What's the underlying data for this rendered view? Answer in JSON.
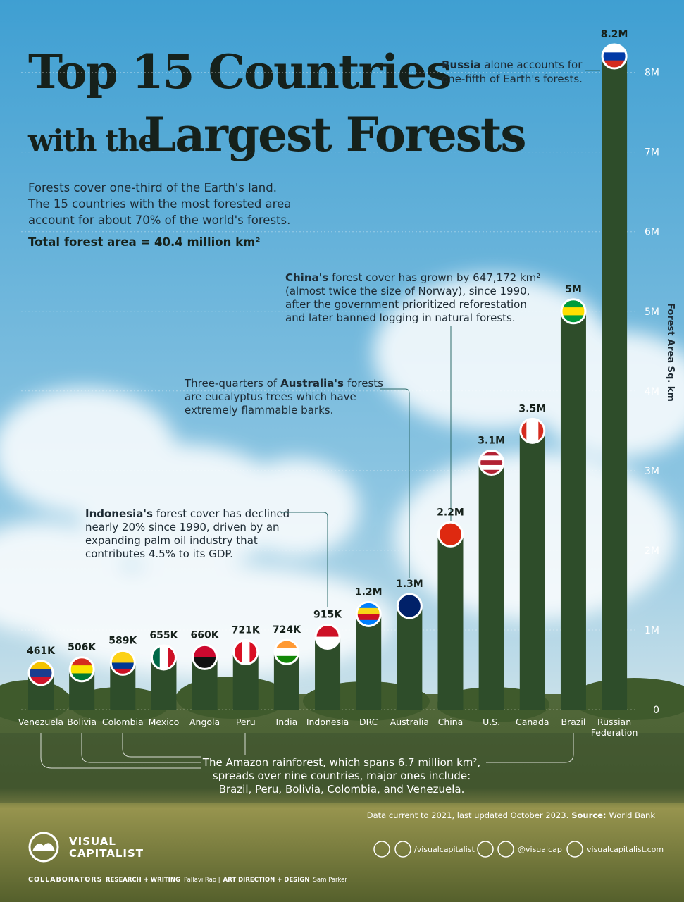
{
  "header": {
    "title_line1": "Top 15 Countries",
    "title_line2a": "with the",
    "title_line2b": "Largest Forests",
    "intro": [
      "Forests cover one-third of the Earth's land.",
      "The 15 countries with the most forested area",
      "account for about 70% of the world's forests."
    ],
    "total": "Total forest area = 40.4 million km²"
  },
  "chart_data": {
    "type": "bar",
    "y_axis_label": "Forest Area Sq. km",
    "categories": [
      "Venezuela",
      "Bolivia",
      "Colombia",
      "Mexico",
      "Angola",
      "Peru",
      "India",
      "Indonesia",
      "DRC",
      "Australia",
      "China",
      "U.S.",
      "Canada",
      "Brazil",
      "Russian Federation"
    ],
    "values": [
      461000,
      506000,
      589000,
      655000,
      660000,
      721000,
      724000,
      915000,
      1200000,
      1300000,
      2200000,
      3100000,
      3500000,
      5000000,
      8200000
    ],
    "value_labels": [
      "461K",
      "506K",
      "589K",
      "655K",
      "660K",
      "721K",
      "724K",
      "915K",
      "1.2M",
      "1.3M",
      "2.2M",
      "3.1M",
      "3.5M",
      "5M",
      "8.2M"
    ],
    "color": "#2e4d2a",
    "ylim": [
      0,
      8200000
    ],
    "yticks": [
      0,
      {
        "value": 1000000,
        "label": "1M"
      },
      {
        "value": 2000000,
        "label": "2M"
      },
      {
        "value": 3000000,
        "label": "3M"
      },
      {
        "value": 4000000,
        "label": "4M"
      },
      {
        "value": 5000000,
        "label": "5M"
      },
      {
        "value": 6000000,
        "label": "6M"
      },
      {
        "value": 7000000,
        "label": "7M"
      },
      {
        "value": 8000000,
        "label": "8M"
      }
    ],
    "grid": true
  },
  "annotations": [
    {
      "bold": "Russia",
      "after": "alone accounts for",
      "lines": [
        "one-fifth of Earth's forests."
      ]
    },
    {
      "bold": "China's",
      "after": "forest cover has grown by 647,172 km²",
      "lines": [
        "(almost twice the size of Norway), since 1990,",
        "after the government prioritized reforestation",
        "and later banned logging in natural forests."
      ]
    },
    {
      "before": "Three-quarters of",
      "bold": "Australia's",
      "after": "forests",
      "lines": [
        "are eucalyptus trees which have",
        "extremely flammable barks."
      ]
    },
    {
      "bold": "Indonesia's",
      "after": "forest cover has declined",
      "lines": [
        "nearly 20% since 1990, driven by an",
        "expanding palm oil industry that",
        "contributes 4.5% to its GDP."
      ]
    }
  ],
  "amazon": {
    "lines": [
      "The Amazon rainforest, which spans 6.7 million km²,",
      "spreads over nine countries, major ones include:",
      "Brazil, Peru, Bolivia, Colombia, and Venezuela."
    ]
  },
  "footer": {
    "data_note": "Data current to 2021, last updated October 2023.",
    "source_label": "Source:",
    "source": "World Bank",
    "brand": [
      "VISUAL",
      "CAPITALIST"
    ],
    "social": [
      "/visualcapitalist",
      "@visualcap",
      "visualcapitalist.com"
    ],
    "credits": [
      "COLLABORATORS",
      "RESEARCH + WRITING",
      "Pallavi Rao |",
      "ART DIRECTION + DESIGN",
      "Sam Parker"
    ]
  }
}
